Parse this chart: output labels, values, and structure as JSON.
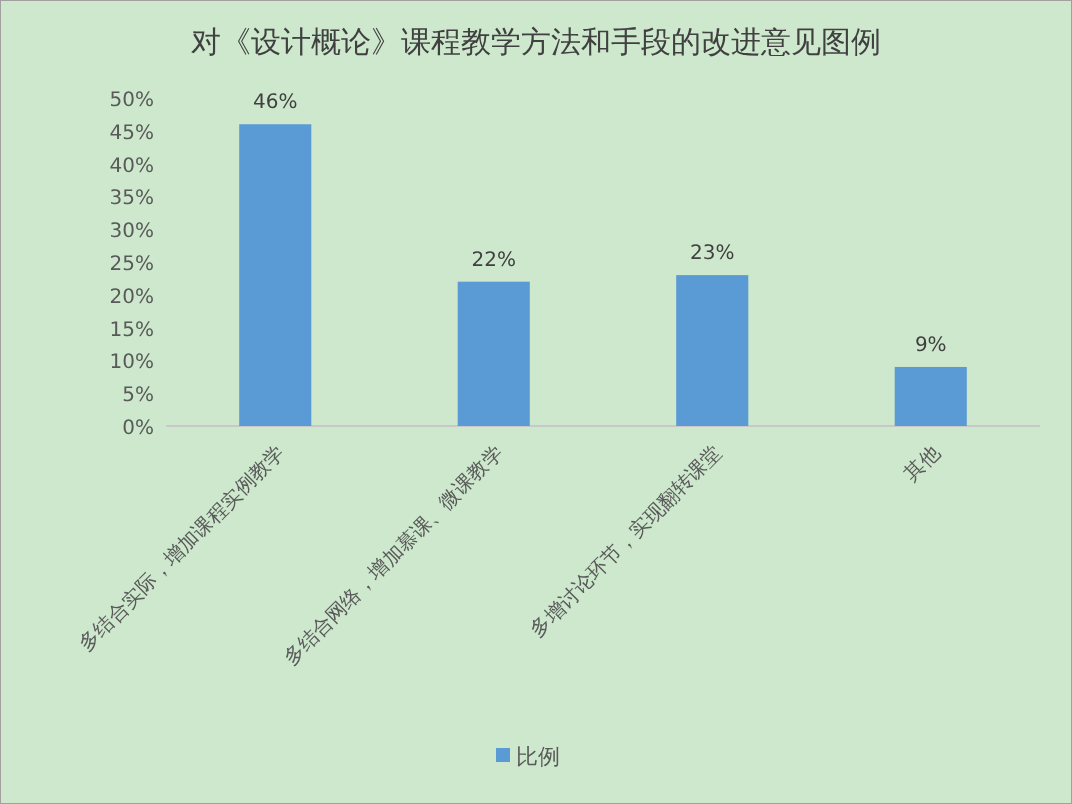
{
  "chart_data": {
    "type": "bar",
    "title": "对《设计概论》课程教学方法和手段的改进意见图例",
    "categories": [
      "多结合实际，增加课程实例教学",
      "多结合网络，增加慕课、微课教学",
      "多增讨论环节，实现翻转课堂",
      "其他"
    ],
    "series": [
      {
        "name": "比例",
        "color": "#5b9bd5",
        "values": [
          46,
          22,
          23,
          9
        ],
        "value_labels": [
          "46%",
          "22%",
          "23%",
          "9%"
        ]
      }
    ],
    "ylim": [
      0,
      50
    ],
    "yticks": [
      {
        "value": 0,
        "label": "0%"
      },
      {
        "value": 5,
        "label": "5%"
      },
      {
        "value": 10,
        "label": "10%"
      },
      {
        "value": 15,
        "label": "15%"
      },
      {
        "value": 20,
        "label": "20%"
      },
      {
        "value": 25,
        "label": "25%"
      },
      {
        "value": 30,
        "label": "30%"
      },
      {
        "value": 35,
        "label": "35%"
      },
      {
        "value": 40,
        "label": "40%"
      },
      {
        "value": 45,
        "label": "45%"
      },
      {
        "value": 50,
        "label": "50%"
      }
    ],
    "legend": "bottom"
  }
}
